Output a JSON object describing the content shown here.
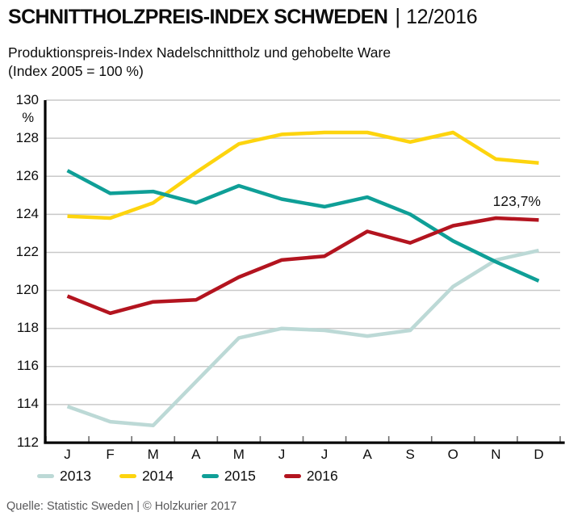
{
  "header": {
    "title": "SCHNITTHOLZPREIS-INDEX SCHWEDEN",
    "separator": "|",
    "period": "12/2016",
    "subtitle_line1": "Produktionspreis-Index Nadelschnittholz und gehobelte Ware",
    "subtitle_line2": "(Index 2005 = 100 %)"
  },
  "chart_data": {
    "type": "line",
    "title": "Schnittholzpreis-Index Schweden 12/2016",
    "subtitle": "Produktionspreis-Index Nadelschnittholz und gehobelte Ware (Index 2005 = 100 %)",
    "x_categories": [
      "J",
      "F",
      "M",
      "A",
      "M",
      "J",
      "J",
      "A",
      "S",
      "O",
      "N",
      "D"
    ],
    "y_axis": {
      "unit_label": "%",
      "min": 112,
      "max": 130,
      "tick_step": 2,
      "ticks": [
        130,
        128,
        126,
        124,
        122,
        120,
        118,
        116,
        114,
        112
      ]
    },
    "grid": true,
    "legend_position": "bottom",
    "series": [
      {
        "name": "2013",
        "color": "#bcd9d6",
        "values": [
          113.9,
          113.1,
          112.9,
          115.2,
          117.5,
          118.0,
          117.9,
          117.6,
          117.9,
          120.2,
          121.6,
          122.1
        ]
      },
      {
        "name": "2014",
        "color": "#fdd40e",
        "values": [
          123.9,
          123.8,
          124.6,
          126.2,
          127.7,
          128.2,
          128.3,
          128.3,
          127.8,
          128.3,
          126.9,
          126.7
        ]
      },
      {
        "name": "2015",
        "color": "#0f9f97",
        "values": [
          126.3,
          125.1,
          125.2,
          124.6,
          125.5,
          124.8,
          124.4,
          124.9,
          124.0,
          122.6,
          121.5,
          120.5
        ]
      },
      {
        "name": "2016",
        "color": "#b3141f",
        "values": [
          119.7,
          118.8,
          119.4,
          119.5,
          120.7,
          121.6,
          121.8,
          123.1,
          122.5,
          123.4,
          123.8,
          123.7
        ]
      }
    ],
    "annotation": {
      "text": "123,7%",
      "series": "2016",
      "point": "D"
    },
    "style": {
      "grid_color": "#c9c9c9",
      "axis_color": "#000000",
      "tick_color": "#6f6f6f"
    }
  },
  "footer": {
    "source": "Quelle: Statistic Sweden | © Holzkurier 2017"
  }
}
